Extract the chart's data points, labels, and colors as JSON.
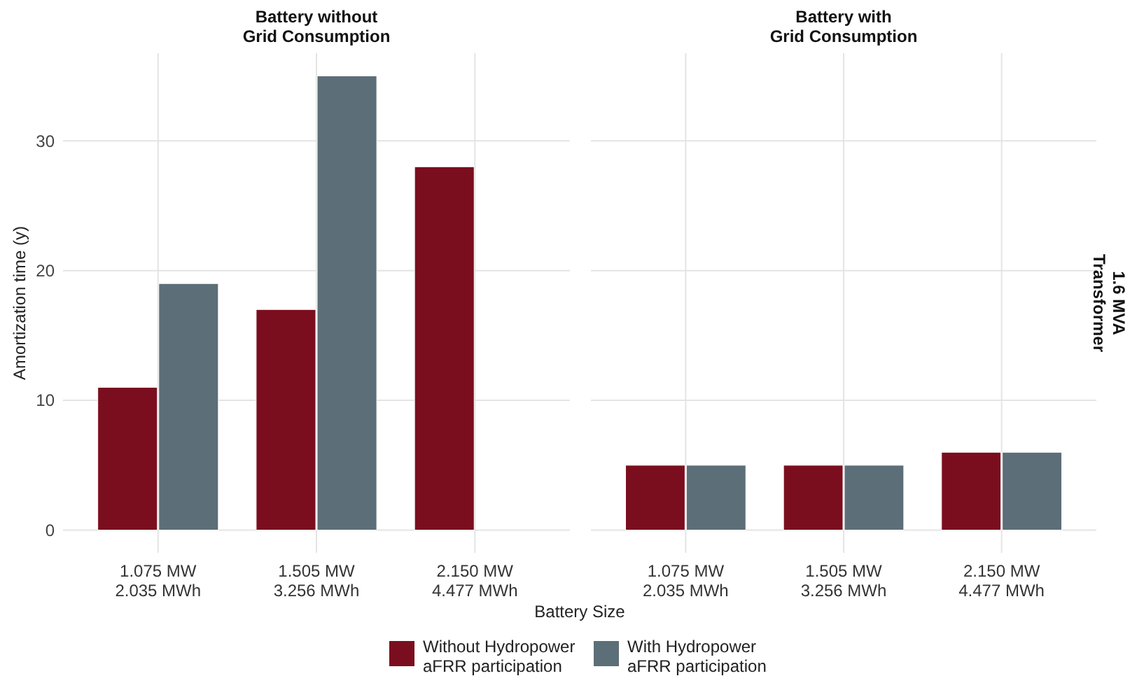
{
  "chart_data": [
    {
      "type": "bar",
      "title": "Battery without\nGrid Consumption",
      "ylabel": "Amortization time (y)",
      "xlabel": "Battery Size",
      "categories": [
        "1.075 MW\n2.035 MWh",
        "1.505 MW\n3.256 MWh",
        "2.150 MW\n4.477 MWh"
      ],
      "ylim": [
        -1.75,
        36.75
      ],
      "yticks": [
        0,
        10,
        20,
        30
      ],
      "grid": true,
      "legend": "bottom",
      "series": [
        {
          "name": "Without Hydropower\naFRR participation",
          "color": "#7b0e1e",
          "values": [
            11,
            17,
            28
          ]
        },
        {
          "name": "With Hydropower\naFRR participation",
          "color": "#5c6e78",
          "values": [
            19,
            35,
            null
          ]
        }
      ]
    },
    {
      "type": "bar",
      "title": "Battery with\nGrid Consumption",
      "categories": [
        "1.075 MW\n2.035 MWh",
        "1.505 MW\n3.256 MWh",
        "2.150 MW\n4.477 MWh"
      ],
      "ylim": [
        -1.75,
        36.75
      ],
      "yticks": [
        0,
        10,
        20,
        30
      ],
      "grid": true,
      "tick_labels": "x",
      "annotations": [
        "1.6 MVA\nTransformer"
      ],
      "series": [
        {
          "color": "#7b0e1e",
          "values": [
            5,
            5,
            6
          ]
        },
        {
          "color": "#5c6e78",
          "values": [
            5,
            5,
            6
          ]
        }
      ]
    }
  ]
}
